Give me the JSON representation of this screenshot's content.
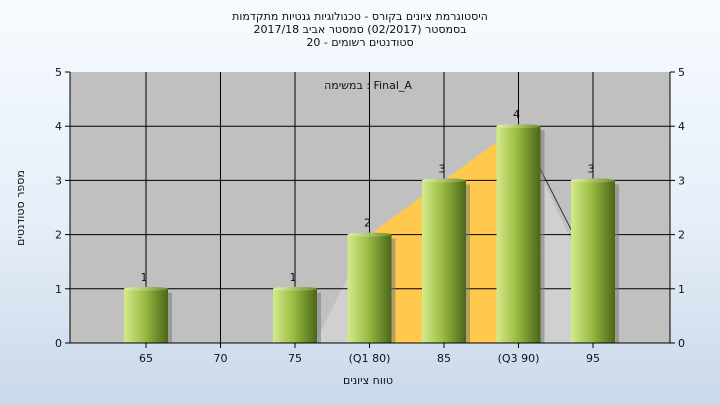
{
  "title": {
    "line1": "היסטוגרמת ציונים בקורס - טכנולוגיות גנטיות מתקדמות",
    "line2": "בסמסטר  (02/2017)  סמסטר אביב 2017/18",
    "line3": "סטודנטים רשומים - 20"
  },
  "chart_data": {
    "type": "bar",
    "categories": [
      "65",
      "70",
      "75",
      "(Q1 80)",
      "85",
      "(Q3 90)",
      "95"
    ],
    "values": [
      1,
      0,
      1,
      2,
      3,
      4,
      3
    ],
    "data_labels": [
      "1",
      "",
      "1",
      "2",
      "3",
      "4",
      "3"
    ],
    "annotation": "במשימה : Final_A",
    "xlabel": "טווח ציונים",
    "ylabel": "מספר סטודנטים",
    "ylim": [
      0,
      5
    ],
    "yticks": [
      "0",
      "1",
      "2",
      "3",
      "4",
      "5"
    ],
    "grid": true,
    "quartile_area": {
      "from_category": "75",
      "to_category": "95",
      "peak_category": "(Q3 90)"
    },
    "colors": {
      "plot_background": "#c0c0c0",
      "bar_light": "#c6e07a",
      "bar_dark": "#4f6b1c",
      "quartile_fill": "#ffc94d",
      "distribution_fill": "#d0d0d0"
    }
  }
}
